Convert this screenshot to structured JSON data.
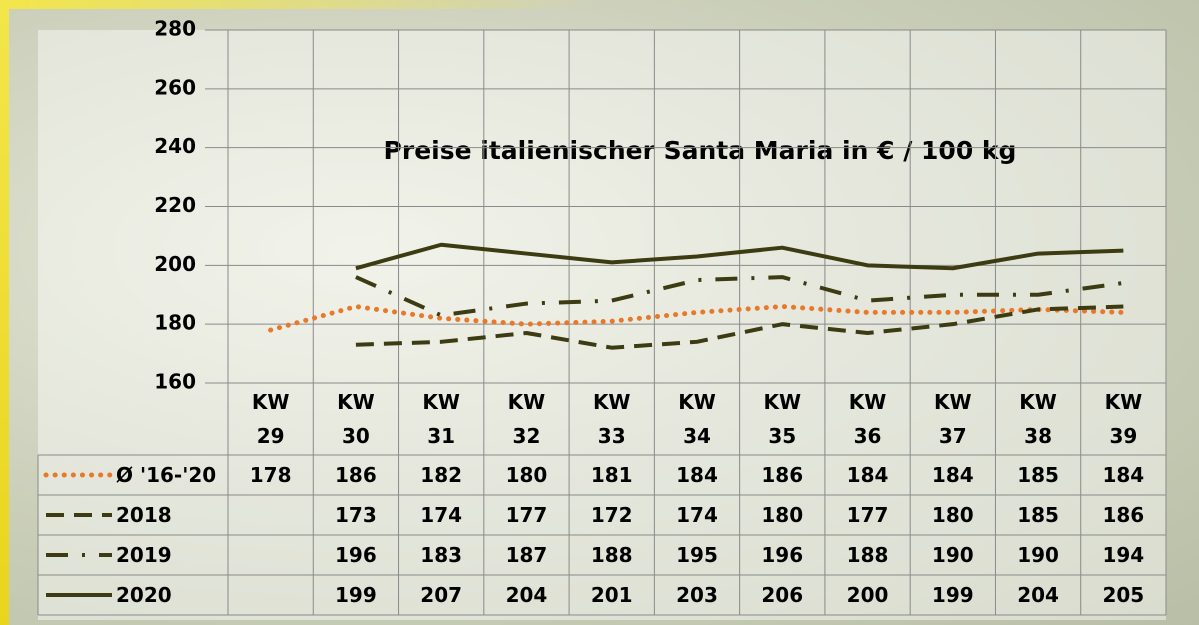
{
  "chart_data": {
    "type": "line",
    "title": "Preise italienischer Santa Maria in € / 100 kg",
    "categories": [
      "KW 29",
      "KW 30",
      "KW 31",
      "KW 32",
      "KW 33",
      "KW 34",
      "KW 35",
      "KW 36",
      "KW 37",
      "KW 38",
      "KW 39"
    ],
    "series": [
      {
        "name": "Ø '16-'20",
        "color": "#e8782a",
        "style": "dotted",
        "values": [
          178,
          186,
          182,
          180,
          181,
          184,
          186,
          184,
          184,
          185,
          184
        ]
      },
      {
        "name": "2018",
        "color": "#3c3b12",
        "style": "dashed",
        "values": [
          null,
          173,
          174,
          177,
          172,
          174,
          180,
          177,
          180,
          185,
          186
        ]
      },
      {
        "name": "2019",
        "color": "#3c3b12",
        "style": "dashdot",
        "values": [
          null,
          196,
          183,
          187,
          188,
          195,
          196,
          188,
          190,
          190,
          194
        ]
      },
      {
        "name": "2020",
        "color": "#3c3b12",
        "style": "solid",
        "values": [
          null,
          199,
          207,
          204,
          201,
          203,
          206,
          200,
          199,
          204,
          205
        ]
      }
    ],
    "ylim": [
      160,
      280
    ],
    "yticks": [
      160,
      180,
      200,
      220,
      240,
      260,
      280
    ],
    "grid": true
  }
}
